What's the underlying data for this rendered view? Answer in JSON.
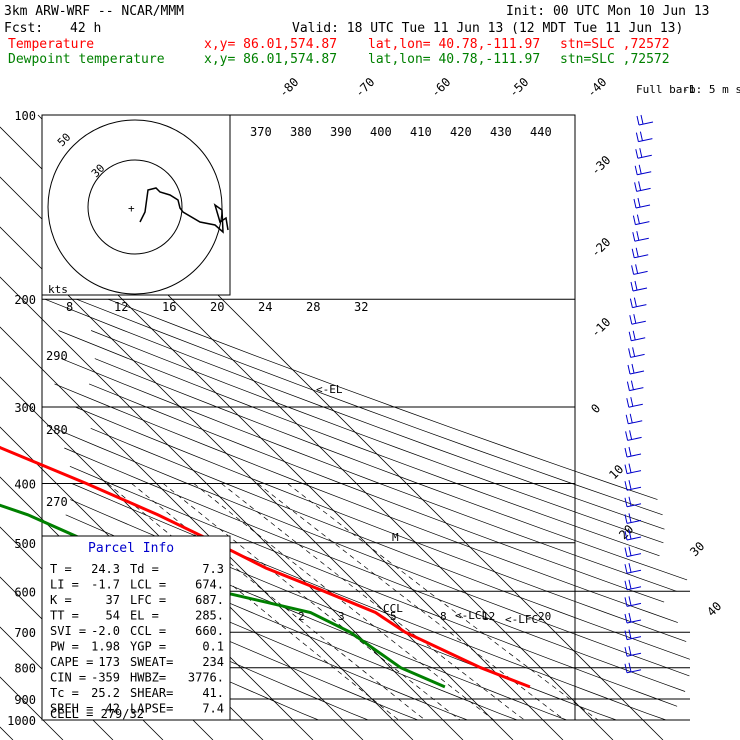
{
  "header": {
    "model": "3km ARW-WRF -- NCAR/MMM",
    "init": "Init: 00 UTC Mon 10 Jun 13",
    "fcst_label": "Fcst:",
    "fcst_value": "42 h",
    "valid": "Valid: 18 UTC Tue 11 Jun 13 (12 MDT Tue 11 Jun 13)",
    "temp_label": "Temperature",
    "dew_label": "Dewpoint temperature",
    "xy": "x,y= 86.01,574.87",
    "latlon": "lat,lon= 40.78,-111.97",
    "stn": "stn=SLC ,72572"
  },
  "colors": {
    "temperature": "#ff0000",
    "dewpoint": "#008000",
    "parcel_info": "#0000cc",
    "wind_barbs": "#0000cc"
  },
  "chart_data": {
    "type": "line",
    "pressure_levels": [
      "100",
      "200",
      "300",
      "400",
      "500",
      "600",
      "700",
      "800",
      "900",
      "1000"
    ],
    "isotherm_labels": [
      "-80",
      "-70",
      "-60",
      "-50",
      "-40",
      "-30",
      "-20",
      "-10",
      "0",
      "10",
      "20",
      "30",
      "40"
    ],
    "theta_labels": [
      "370",
      "380",
      "390",
      "400",
      "410",
      "420",
      "430",
      "440"
    ],
    "theta_labels_left": [
      "290",
      "280",
      "270"
    ],
    "mixing_ratio_labels": [
      "2",
      "3",
      "5",
      "8",
      "12",
      "20"
    ],
    "hodograph_speed_labels": [
      "8",
      "12",
      "16",
      "20",
      "24",
      "28",
      "32"
    ],
    "hodograph_ring_labels": [
      "50",
      "30"
    ],
    "hodograph_unit": "kts",
    "barb_legend": "Full barb: 5 m s",
    "level_markers": [
      "<-EL",
      "M",
      "<-LCL",
      "<-LFC",
      "CCL"
    ],
    "series": [
      {
        "name": "Temperature",
        "points": [
          [
            100,
            -62
          ],
          [
            150,
            -60
          ],
          [
            200,
            -56
          ],
          [
            250,
            -53
          ],
          [
            270,
            -52
          ],
          [
            300,
            -44
          ],
          [
            350,
            -34
          ],
          [
            400,
            -24
          ],
          [
            450,
            -16
          ],
          [
            500,
            -10
          ],
          [
            550,
            -5
          ],
          [
            600,
            2
          ],
          [
            650,
            8
          ],
          [
            700,
            10
          ],
          [
            800,
            18
          ],
          [
            860,
            24
          ]
        ]
      },
      {
        "name": "Dewpoint temperature",
        "points": [
          [
            100,
            -85
          ],
          [
            200,
            -90
          ],
          [
            250,
            -77
          ],
          [
            300,
            -70
          ],
          [
            350,
            -62
          ],
          [
            400,
            -54
          ],
          [
            450,
            -42
          ],
          [
            500,
            -35
          ],
          [
            550,
            -26
          ],
          [
            600,
            -19
          ],
          [
            650,
            -5
          ],
          [
            700,
            -1
          ],
          [
            800,
            2
          ],
          [
            860,
            7
          ]
        ]
      }
    ]
  },
  "parcel": {
    "title": "Parcel Info",
    "rows": [
      [
        "T  =",
        "24.3",
        "Td =",
        "7.3"
      ],
      [
        "LI =",
        "-1.7",
        "LCL =",
        "674."
      ],
      [
        "K  =",
        "37",
        "LFC =",
        "687."
      ],
      [
        "TT =",
        "54",
        "EL  =",
        "285."
      ],
      [
        "SVI =",
        "-2.0",
        "CCL =",
        "660."
      ],
      [
        "PW =",
        "1.98",
        "YGP =",
        "0.1"
      ],
      [
        "CAPE =",
        "173",
        "SWEAT=",
        "234"
      ],
      [
        "CIN =",
        "-359",
        "HWBZ=",
        "3776."
      ],
      [
        "Tc =",
        "25.2",
        "SHEAR=",
        "41."
      ],
      [
        "SREH =",
        "42",
        "LAPSE=",
        "7.4"
      ]
    ],
    "cell": "CELL = 279/32"
  }
}
